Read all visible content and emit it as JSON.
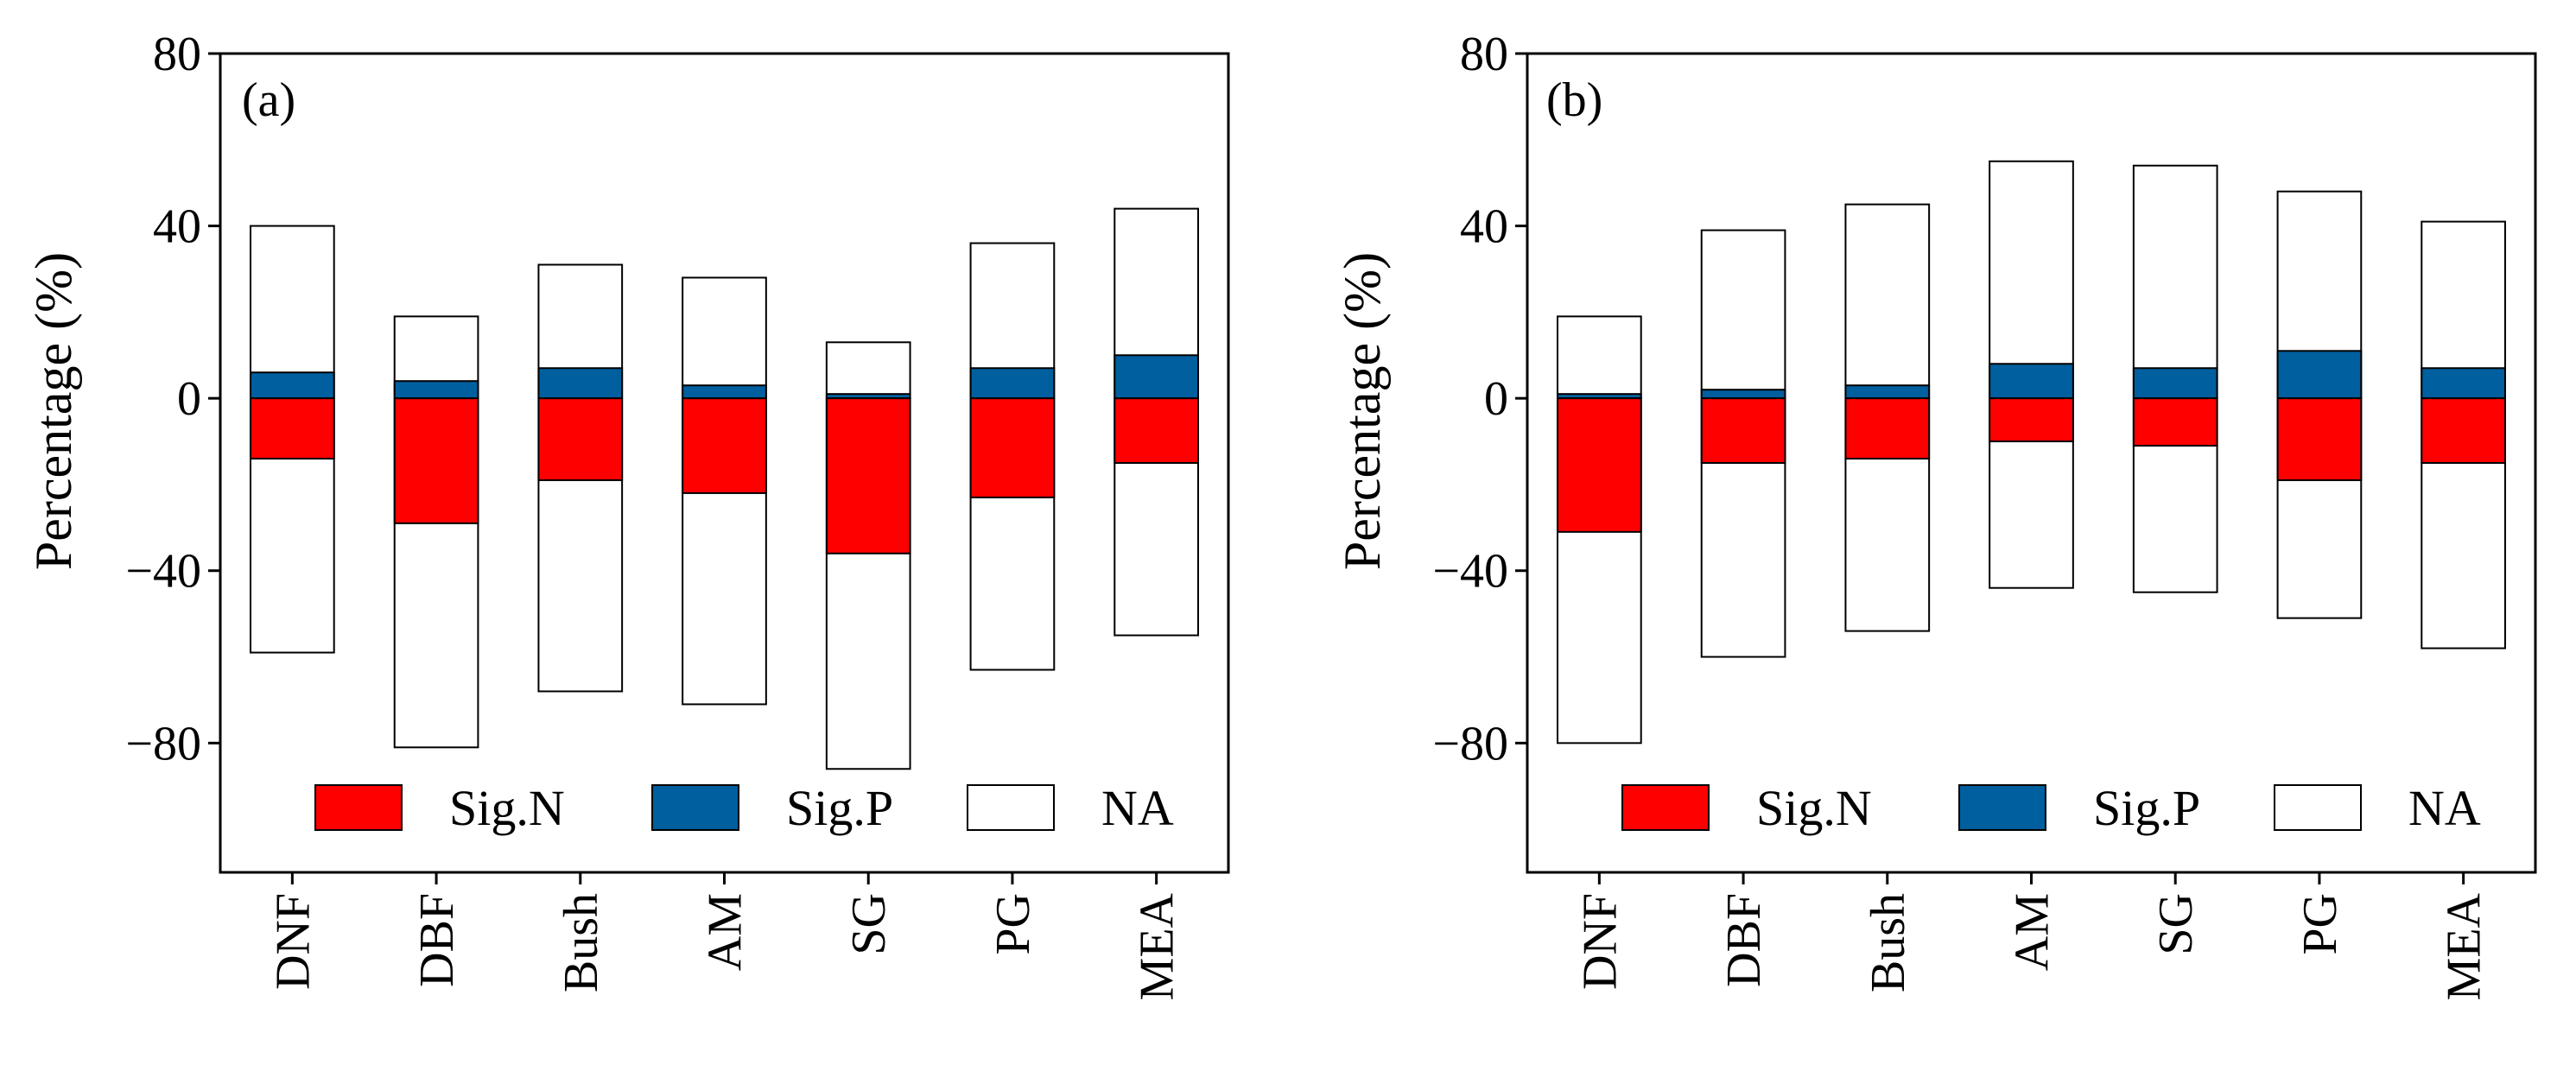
{
  "chart_data": [
    {
      "type": "bar",
      "panel_label": "(a)",
      "ylabel": "Percentage (%)",
      "xlabel": "",
      "ylim": [
        -110,
        80
      ],
      "yticks": [
        80,
        40,
        0,
        -40,
        -80
      ],
      "ytick_labels": [
        "80",
        "40",
        "0",
        "−40",
        "−80"
      ],
      "categories": [
        "DNF",
        "DBF",
        "Bush",
        "AM",
        "SG",
        "PG",
        "MEA"
      ],
      "series": [
        {
          "name": "Sig.N",
          "color": "#ff0000",
          "values": [
            -14,
            -29,
            -19,
            -22,
            -36,
            -23,
            -15
          ]
        },
        {
          "name": "Sig.P",
          "color": "#005f9e",
          "values": [
            6,
            4,
            7,
            3,
            1,
            7,
            10
          ]
        },
        {
          "name": "NA",
          "color": "#ffffff",
          "upper": [
            40,
            19,
            31,
            28,
            13,
            36,
            44
          ],
          "lower": [
            -59,
            -81,
            -68,
            -71,
            -86,
            -63,
            -55
          ]
        }
      ],
      "legend_position": "bottom",
      "grid": false
    },
    {
      "type": "bar",
      "panel_label": "(b)",
      "ylabel": "Percentage (%)",
      "xlabel": "",
      "ylim": [
        -110,
        80
      ],
      "yticks": [
        80,
        40,
        0,
        -40,
        -80
      ],
      "ytick_labels": [
        "80",
        "40",
        "0",
        "−40",
        "−80"
      ],
      "categories": [
        "DNF",
        "DBF",
        "Bush",
        "AM",
        "SG",
        "PG",
        "MEA"
      ],
      "series": [
        {
          "name": "Sig.N",
          "color": "#ff0000",
          "values": [
            -31,
            -15,
            -14,
            -10,
            -11,
            -19,
            -15
          ]
        },
        {
          "name": "Sig.P",
          "color": "#005f9e",
          "values": [
            1,
            2,
            3,
            8,
            7,
            11,
            7
          ]
        },
        {
          "name": "NA",
          "color": "#ffffff",
          "upper": [
            19,
            39,
            45,
            55,
            54,
            48,
            41
          ],
          "lower": [
            -80,
            -60,
            -54,
            -44,
            -45,
            -51,
            -58
          ]
        }
      ],
      "legend_position": "bottom",
      "grid": false
    }
  ]
}
